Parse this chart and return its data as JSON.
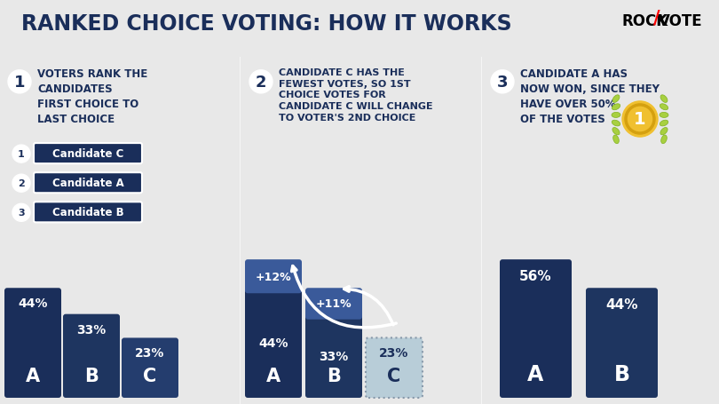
{
  "title": "RANKED CHOICE VOTING: HOW IT WORKS",
  "bg_top": "#e8e8e8",
  "bg_main": "#5bc8e8",
  "bar_dark": "#1a2e5a",
  "bar_medium": "#2a4a7a",
  "bar_light_gray": "#b8cdd8",
  "bar_increment": "#3a5a9a",
  "text_white": "#ffffff",
  "text_dark": "#1a2e5a",
  "step1": {
    "circle_num": "1",
    "title": "VOTERS RANK THE\nCANDIDATES\nFIRST CHOICE TO\nLAST CHOICE",
    "ranking": [
      {
        "num": "1",
        "label": "Candidate C"
      },
      {
        "num": "2",
        "label": "Candidate A"
      },
      {
        "num": "3",
        "label": "Candidate B"
      }
    ],
    "bars": [
      {
        "label": "A",
        "pct": 44,
        "color": "#1a2e5a"
      },
      {
        "label": "B",
        "pct": 33,
        "color": "#1e3560"
      },
      {
        "label": "C",
        "pct": 23,
        "color": "#243d6e"
      }
    ]
  },
  "step2": {
    "circle_num": "2",
    "title": "CANDIDATE C HAS THE\nFEWEST VOTES, SO 1ST\nCHOICE VOTES FOR\nCANDIDATE C WILL CHANGE\nTO VOTER'S 2ND CHOICE",
    "bars": [
      {
        "label": "A",
        "base_pct": 44,
        "inc_pct": 12,
        "base_color": "#1a2e5a",
        "inc_color": "#3a5a9a",
        "base_label": "44%",
        "inc_label": "+12%"
      },
      {
        "label": "B",
        "base_pct": 33,
        "inc_pct": 11,
        "base_color": "#1e3560",
        "inc_color": "#3a5a9a",
        "base_label": "33%",
        "inc_label": "+11%"
      },
      {
        "label": "C",
        "base_pct": 23,
        "inc_pct": 0,
        "base_color": "#b8cdd8",
        "inc_color": null,
        "base_label": "23%",
        "inc_label": null
      }
    ]
  },
  "step3": {
    "circle_num": "3",
    "title": "CANDIDATE A HAS\nNOW WON, SINCE THEY\nHAVE OVER 50%\nOF THE VOTES",
    "bars": [
      {
        "label": "A",
        "pct": 56,
        "color": "#1a2e5a",
        "pct_label": "56%"
      },
      {
        "label": "B",
        "pct": 44,
        "color": "#1e3560",
        "pct_label": "44%"
      }
    ]
  }
}
